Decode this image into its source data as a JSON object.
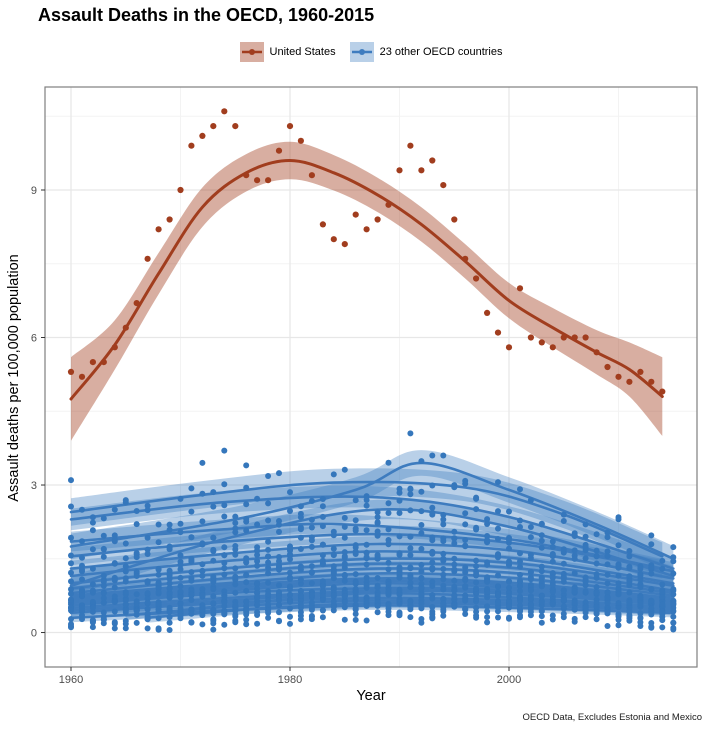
{
  "chart_data": {
    "type": "scatter",
    "title": "Assault Deaths in the OECD, 1960-2015",
    "xlabel": "Year",
    "ylabel": "Assault deaths per 100,000 population",
    "caption": "OECD Data, Excludes Estonia and Mexico",
    "legend_position": "top",
    "grid": true,
    "xlim": [
      1957.6,
      2017.2
    ],
    "ylim": [
      -0.7,
      11.1
    ],
    "xticks": [
      "1960",
      "1980",
      "2000"
    ],
    "xtick_values": [
      1960,
      1980,
      2000
    ],
    "yticks": [
      "0",
      "3",
      "6",
      "9"
    ],
    "ytick_values": [
      0,
      3,
      6,
      9
    ],
    "xminor": [
      1970,
      1990,
      2010
    ],
    "yminor": [
      1.5,
      4.5,
      7.5,
      10.5
    ],
    "colors": {
      "us_line": "#A13D1E",
      "us_point": "#A13D1E",
      "us_ribbon": "rgba(161,61,30,0.42)",
      "oecd_line": "#3E7CBF",
      "oecd_point": "#3577BC",
      "oecd_ribbon": "rgba(62,124,191,0.36)",
      "grid_major": "#e7e7e7",
      "grid_minor": "#f3f3f3",
      "panel_border": "#7f7f7f",
      "tick_mark": "#333333",
      "tick_label": "#4d4d4d"
    },
    "series": [
      {
        "name": "United States",
        "points": [
          [
            1960,
            5.3
          ],
          [
            1961,
            5.2
          ],
          [
            1962,
            5.5
          ],
          [
            1963,
            5.5
          ],
          [
            1964,
            5.8
          ],
          [
            1965,
            6.2
          ],
          [
            1966,
            6.7
          ],
          [
            1967,
            7.6
          ],
          [
            1968,
            8.2
          ],
          [
            1969,
            8.4
          ],
          [
            1970,
            9.0
          ],
          [
            1971,
            9.9
          ],
          [
            1972,
            10.1
          ],
          [
            1973,
            10.3
          ],
          [
            1974,
            10.6
          ],
          [
            1975,
            10.3
          ],
          [
            1976,
            9.3
          ],
          [
            1977,
            9.2
          ],
          [
            1978,
            9.2
          ],
          [
            1979,
            9.8
          ],
          [
            1980,
            10.3
          ],
          [
            1981,
            10.0
          ],
          [
            1982,
            9.3
          ],
          [
            1983,
            8.3
          ],
          [
            1984,
            8.0
          ],
          [
            1985,
            7.9
          ],
          [
            1986,
            8.5
          ],
          [
            1987,
            8.2
          ],
          [
            1988,
            8.4
          ],
          [
            1989,
            8.7
          ],
          [
            1990,
            9.4
          ],
          [
            1991,
            9.9
          ],
          [
            1992,
            9.4
          ],
          [
            1993,
            9.6
          ],
          [
            1994,
            9.1
          ],
          [
            1995,
            8.4
          ],
          [
            1996,
            7.6
          ],
          [
            1997,
            7.2
          ],
          [
            1998,
            6.5
          ],
          [
            1999,
            6.1
          ],
          [
            2000,
            5.8
          ],
          [
            2001,
            7.0
          ],
          [
            2002,
            6.0
          ],
          [
            2003,
            5.9
          ],
          [
            2004,
            5.8
          ],
          [
            2005,
            6.0
          ],
          [
            2006,
            6.0
          ],
          [
            2007,
            6.0
          ],
          [
            2008,
            5.7
          ],
          [
            2009,
            5.4
          ],
          [
            2010,
            5.2
          ],
          [
            2011,
            5.1
          ],
          [
            2012,
            5.3
          ],
          [
            2013,
            5.1
          ],
          [
            2014,
            4.9
          ]
        ],
        "smooth": [
          [
            1960,
            4.75,
            0.85
          ],
          [
            1964,
            5.85,
            0.5
          ],
          [
            1968,
            7.3,
            0.42
          ],
          [
            1972,
            8.65,
            0.4
          ],
          [
            1976,
            9.35,
            0.38
          ],
          [
            1980,
            9.6,
            0.38
          ],
          [
            1984,
            9.35,
            0.36
          ],
          [
            1988,
            8.9,
            0.35
          ],
          [
            1992,
            8.3,
            0.35
          ],
          [
            1996,
            7.55,
            0.35
          ],
          [
            2000,
            6.75,
            0.36
          ],
          [
            2004,
            6.2,
            0.4
          ],
          [
            2008,
            5.7,
            0.45
          ],
          [
            2011,
            5.35,
            0.55
          ],
          [
            2014,
            4.8,
            0.8
          ]
        ]
      },
      {
        "name": "23 other OECD countries",
        "countries": [
          {
            "knots": [
              [
                1960,
                2.45
              ],
              [
                1972,
                2.8
              ],
              [
                1984,
                3.05
              ],
              [
                1996,
                2.95
              ],
              [
                2005,
                2.4
              ],
              [
                2014,
                1.55
              ]
            ],
            "noise": 0.3,
            "band": 0.28
          },
          {
            "knots": [
              [
                1960,
                2.3
              ],
              [
                1974,
                2.65
              ],
              [
                1988,
                2.75
              ],
              [
                2000,
                2.35
              ],
              [
                2015,
                1.3
              ]
            ],
            "noise": 0.28,
            "band": 0.22
          },
          {
            "knots": [
              [
                1960,
                1.75
              ],
              [
                1975,
                2.3
              ],
              [
                1986,
                2.9
              ],
              [
                1992,
                3.45
              ],
              [
                2000,
                2.9
              ],
              [
                2008,
                2.2
              ],
              [
                2015,
                1.5
              ]
            ],
            "noise": 0.38,
            "band": 0.26
          },
          {
            "knots": [
              [
                1960,
                0.95
              ],
              [
                1974,
                1.9
              ],
              [
                1988,
                2.5
              ],
              [
                2000,
                2.15
              ],
              [
                2015,
                1.15
              ]
            ],
            "noise": 0.3,
            "band": 0.2
          },
          {
            "knots": [
              [
                1960,
                1.55
              ],
              [
                1974,
                1.85
              ],
              [
                1988,
                2.0
              ],
              [
                2001,
                1.8
              ],
              [
                2015,
                1.25
              ]
            ],
            "noise": 0.25,
            "band": 0.18
          },
          {
            "knots": [
              [
                1960,
                1.3
              ],
              [
                1974,
                1.6
              ],
              [
                1988,
                1.8
              ],
              [
                2001,
                1.65
              ],
              [
                2015,
                1.1
              ]
            ],
            "noise": 0.22,
            "band": 0.16
          },
          {
            "knots": [
              [
                1960,
                1.15
              ],
              [
                1974,
                1.45
              ],
              [
                1988,
                1.65
              ],
              [
                2001,
                1.5
              ],
              [
                2015,
                1.0
              ]
            ],
            "noise": 0.2,
            "band": 0.15
          },
          {
            "knots": [
              [
                1960,
                1.0
              ],
              [
                1974,
                1.3
              ],
              [
                1988,
                1.5
              ],
              [
                2001,
                1.4
              ],
              [
                2015,
                0.95
              ]
            ],
            "noise": 0.2,
            "band": 0.15
          },
          {
            "knots": [
              [
                1960,
                0.9
              ],
              [
                1974,
                1.2
              ],
              [
                1988,
                1.4
              ],
              [
                2001,
                1.3
              ],
              [
                2015,
                0.85
              ]
            ],
            "noise": 0.18,
            "band": 0.14
          },
          {
            "knots": [
              [
                1960,
                0.8
              ],
              [
                1974,
                1.1
              ],
              [
                1988,
                1.3
              ],
              [
                2001,
                1.2
              ],
              [
                2015,
                0.8
              ]
            ],
            "noise": 0.18,
            "band": 0.14
          },
          {
            "knots": [
              [
                1960,
                0.75
              ],
              [
                1974,
                1.0
              ],
              [
                1988,
                1.2
              ],
              [
                2001,
                1.1
              ],
              [
                2015,
                0.75
              ]
            ],
            "noise": 0.17,
            "band": 0.13
          },
          {
            "knots": [
              [
                1960,
                0.7
              ],
              [
                1974,
                0.95
              ],
              [
                1988,
                1.1
              ],
              [
                2001,
                1.0
              ],
              [
                2015,
                0.7
              ]
            ],
            "noise": 0.16,
            "band": 0.13
          },
          {
            "knots": [
              [
                1960,
                0.65
              ],
              [
                1974,
                0.9
              ],
              [
                1988,
                1.05
              ],
              [
                2001,
                0.95
              ],
              [
                2015,
                0.65
              ]
            ],
            "noise": 0.16,
            "band": 0.12
          },
          {
            "knots": [
              [
                1960,
                0.6
              ],
              [
                1974,
                0.85
              ],
              [
                1988,
                1.0
              ],
              [
                2001,
                0.9
              ],
              [
                2015,
                0.6
              ]
            ],
            "noise": 0.15,
            "band": 0.12
          },
          {
            "knots": [
              [
                1960,
                0.55
              ],
              [
                1974,
                0.8
              ],
              [
                1988,
                0.9
              ],
              [
                2001,
                0.85
              ],
              [
                2015,
                0.6
              ]
            ],
            "noise": 0.15,
            "band": 0.12
          },
          {
            "knots": [
              [
                1960,
                0.5
              ],
              [
                1974,
                0.7
              ],
              [
                1988,
                0.85
              ],
              [
                2001,
                0.8
              ],
              [
                2015,
                0.55
              ]
            ],
            "noise": 0.14,
            "band": 0.11
          },
          {
            "knots": [
              [
                1960,
                0.45
              ],
              [
                1974,
                0.65
              ],
              [
                1988,
                0.8
              ],
              [
                2001,
                0.7
              ],
              [
                2015,
                0.5
              ]
            ],
            "noise": 0.14,
            "band": 0.11
          },
          {
            "knots": [
              [
                1960,
                0.4
              ],
              [
                1974,
                0.6
              ],
              [
                1988,
                0.7
              ],
              [
                2001,
                0.65
              ],
              [
                2015,
                0.5
              ]
            ],
            "noise": 0.13,
            "band": 0.1
          },
          {
            "knots": [
              [
                1965,
                0.35
              ],
              [
                1976,
                0.55
              ],
              [
                1988,
                0.65
              ],
              [
                2001,
                0.6
              ],
              [
                2015,
                0.45
              ]
            ],
            "noise": 0.13,
            "band": 0.1
          },
          {
            "knots": [
              [
                1967,
                0.3
              ],
              [
                1978,
                0.5
              ],
              [
                1989,
                0.6
              ],
              [
                2002,
                0.55
              ],
              [
                2014,
                0.45
              ]
            ],
            "noise": 0.12,
            "band": 0.1
          },
          {
            "knots": [
              [
                1960,
                1.85
              ],
              [
                1974,
                2.1
              ],
              [
                1985,
                2.2
              ],
              [
                2000,
                1.9
              ],
              [
                2014,
                1.3
              ]
            ],
            "noise": 0.26,
            "band": 0.2
          },
          {
            "knots": [
              [
                1970,
                0.45
              ],
              [
                1981,
                0.7
              ],
              [
                1992,
                0.85
              ],
              [
                2003,
                0.75
              ],
              [
                2013,
                0.6
              ]
            ],
            "noise": 0.14,
            "band": 0.12
          },
          {
            "knots": [
              [
                1960,
                0.3
              ],
              [
                1974,
                0.45
              ],
              [
                1988,
                0.55
              ],
              [
                2001,
                0.5
              ],
              [
                2015,
                0.4
              ]
            ],
            "noise": 0.1,
            "band": 0.09
          }
        ],
        "extra_points": [
          [
            1960,
            3.1
          ],
          [
            1972,
            3.45
          ],
          [
            1974,
            3.7
          ],
          [
            1976,
            3.4
          ],
          [
            1991,
            4.05
          ],
          [
            1993,
            3.6
          ],
          [
            1994,
            3.6
          ],
          [
            1992,
            0.2
          ],
          [
            2007,
            2.2
          ],
          [
            2010,
            2.3
          ],
          [
            2015,
            1.45
          ],
          [
            2015,
            1.2
          ]
        ]
      }
    ]
  }
}
